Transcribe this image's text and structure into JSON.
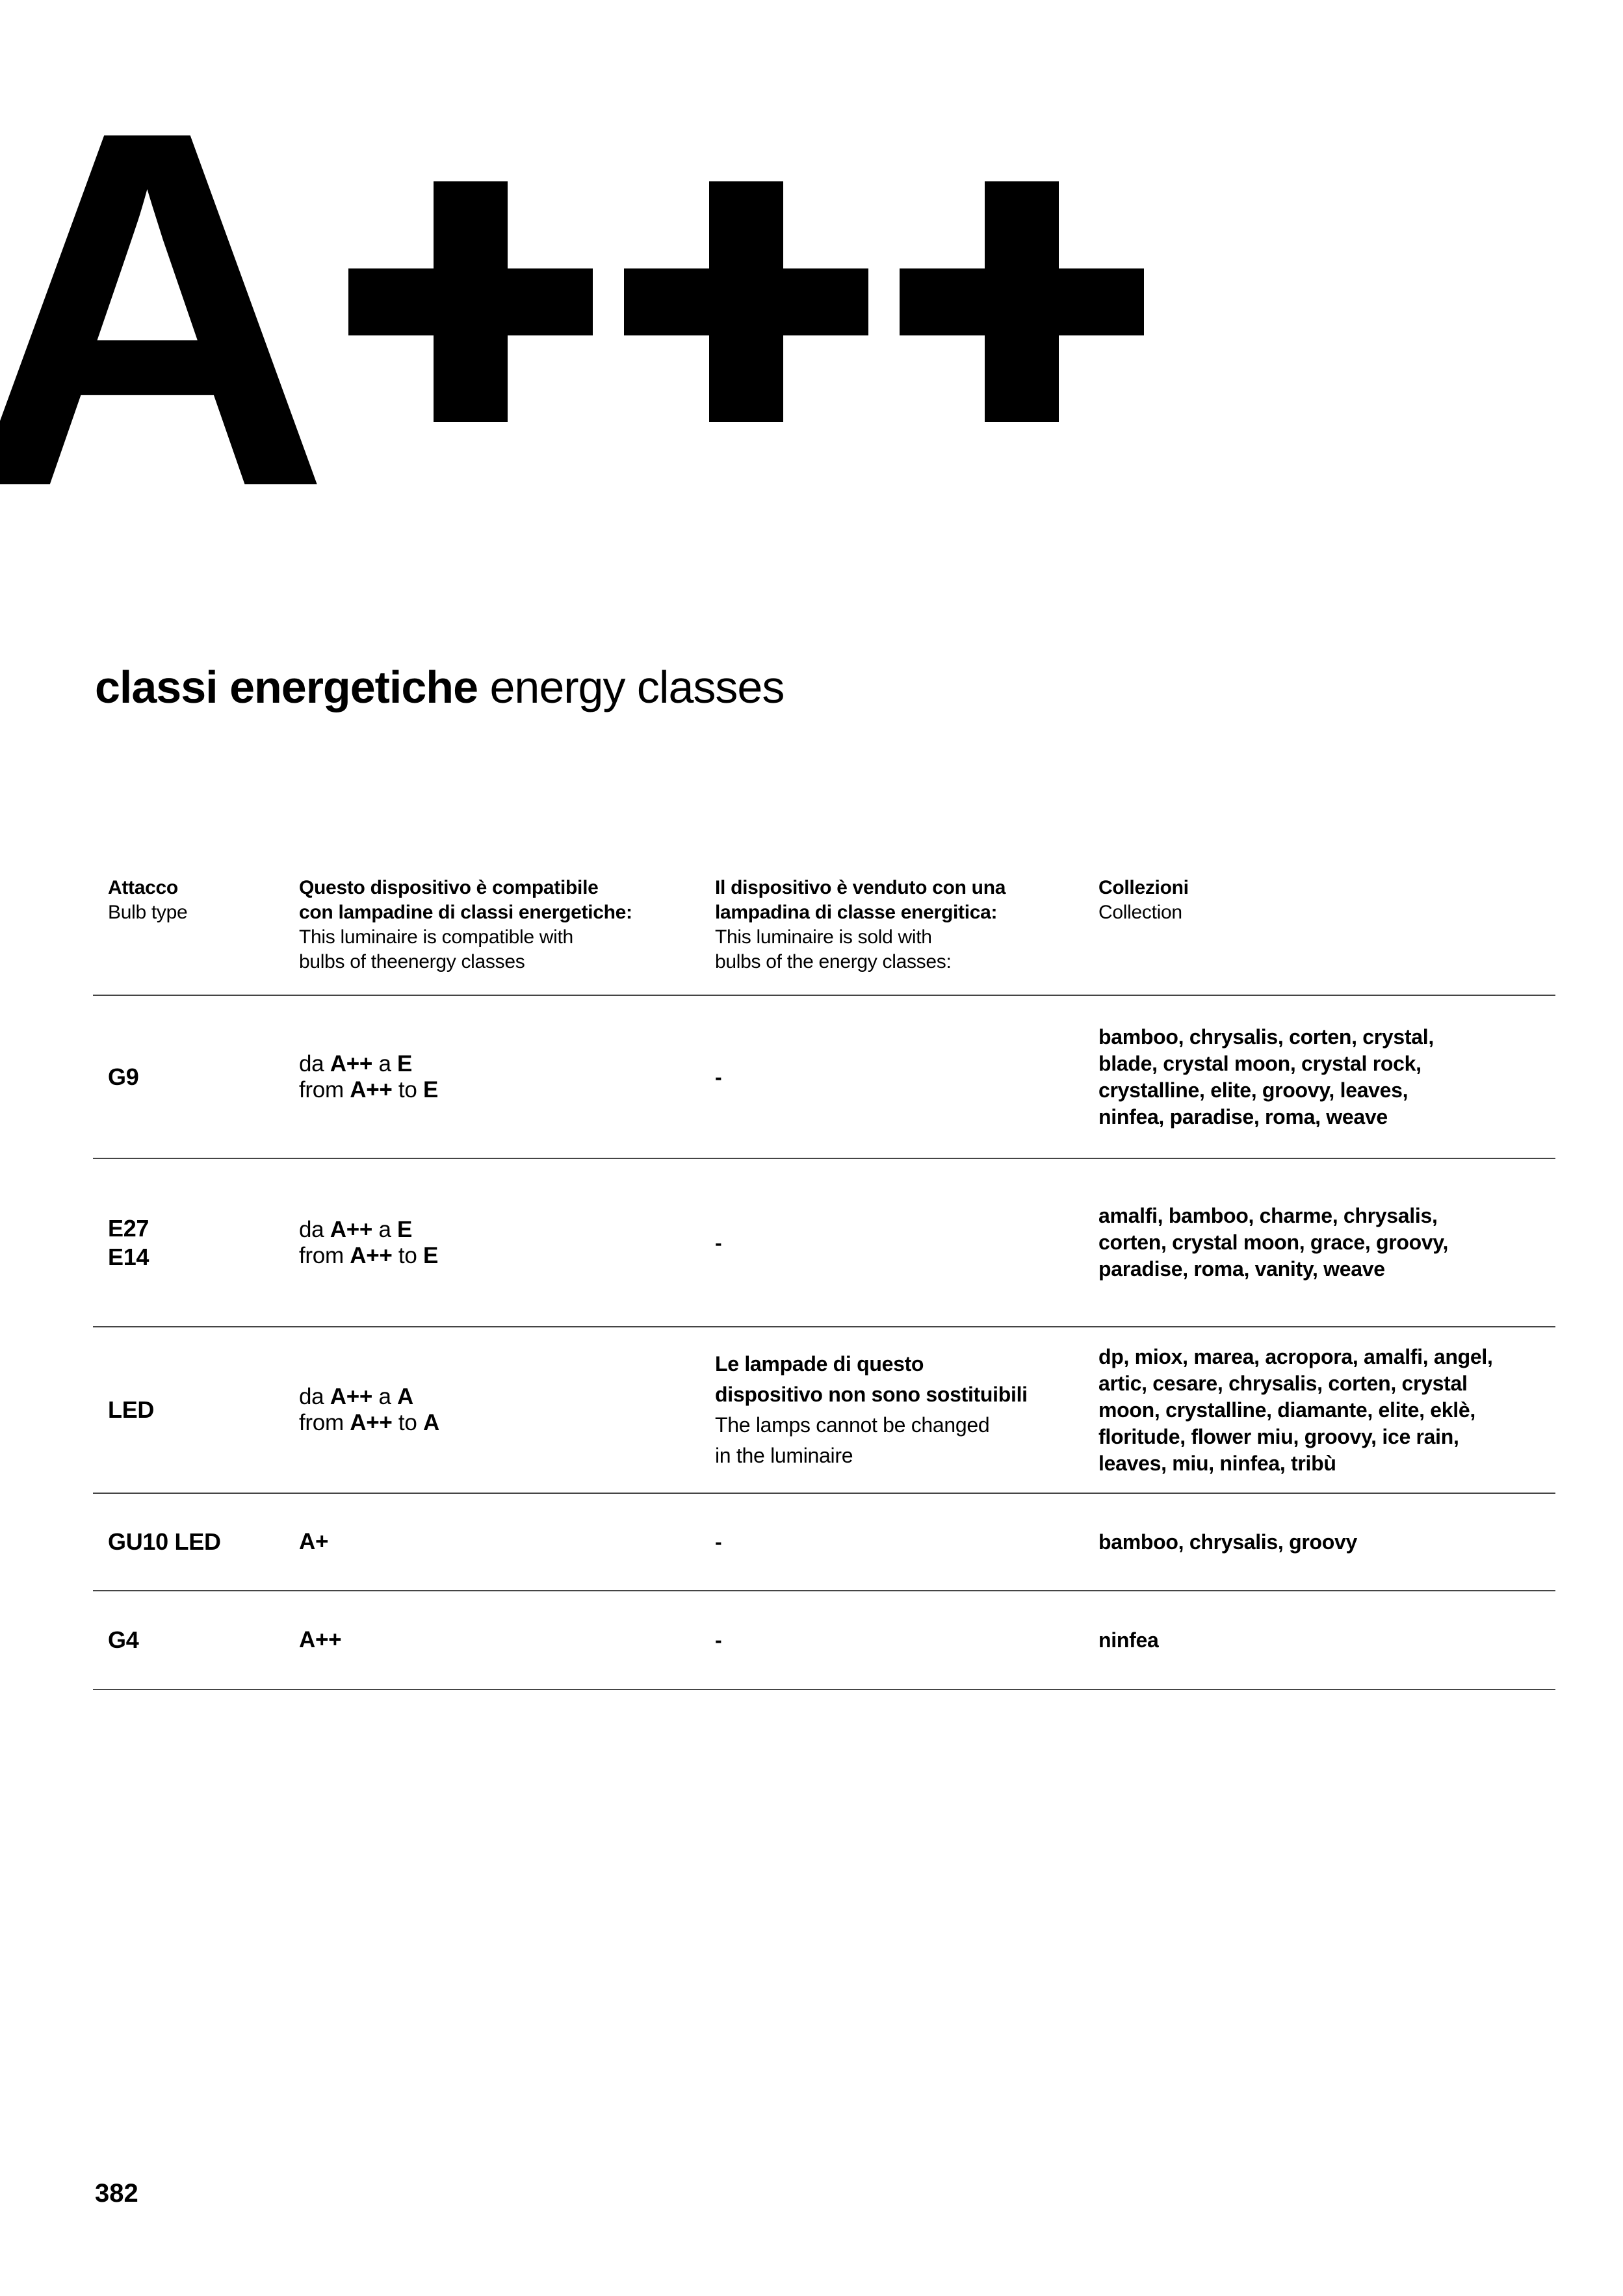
{
  "badge": {
    "text": "A+++",
    "letter": "A"
  },
  "title": {
    "bold": "classi energetiche",
    "regular": "energy classes"
  },
  "table": {
    "headers": [
      {
        "bold_lines": [
          "Attacco"
        ],
        "regular_lines": [
          "Bulb type"
        ]
      },
      {
        "bold_lines": [
          "Questo dispositivo è compatibile",
          "con lampadine di classi energetiche:"
        ],
        "regular_lines": [
          "This luminaire is compatible with",
          "bulbs of theenergy classes"
        ]
      },
      {
        "bold_lines": [
          "Il dispositivo è venduto con una",
          "lampadina di classe energitica:"
        ],
        "regular_lines": [
          "This luminaire is sold with",
          "bulbs of the energy classes:"
        ]
      },
      {
        "bold_lines": [
          "Collezioni"
        ],
        "regular_lines": [
          "Collection"
        ]
      }
    ],
    "rows": [
      {
        "bulb_lines": [
          "G9"
        ],
        "compat_lines": [
          [
            [
              "da ",
              0
            ],
            [
              "A++",
              1
            ],
            [
              " a ",
              0
            ],
            [
              "E",
              1
            ]
          ],
          [
            [
              "from ",
              0
            ],
            [
              "A++",
              1
            ],
            [
              " to ",
              0
            ],
            [
              "E",
              1
            ]
          ]
        ],
        "sold_dash": "-",
        "collection_lines": [
          "bamboo, chrysalis, corten, crystal,",
          "blade, crystal moon, crystal rock,",
          "crystalline, elite, groovy, leaves,",
          "ninfea, paradise, roma, weave"
        ]
      },
      {
        "bulb_lines": [
          "E27",
          "E14"
        ],
        "compat_lines": [
          [
            [
              "da ",
              0
            ],
            [
              "A++",
              1
            ],
            [
              " a ",
              0
            ],
            [
              "E",
              1
            ]
          ],
          [
            [
              "from ",
              0
            ],
            [
              "A++",
              1
            ],
            [
              " to ",
              0
            ],
            [
              "E",
              1
            ]
          ]
        ],
        "sold_dash": "-",
        "collection_lines": [
          "amalfi, bamboo, charme, chrysalis,",
          "corten, crystal moon, grace, groovy,",
          "paradise, roma, vanity, weave"
        ]
      },
      {
        "bulb_lines": [
          "LED"
        ],
        "compat_lines": [
          [
            [
              "da ",
              0
            ],
            [
              "A++",
              1
            ],
            [
              " a ",
              0
            ],
            [
              "A",
              1
            ]
          ],
          [
            [
              "from ",
              0
            ],
            [
              "A++",
              1
            ],
            [
              " to ",
              0
            ],
            [
              "A",
              1
            ]
          ]
        ],
        "sold_bold_lines": [
          "Le lampade di questo",
          "dispositivo non sono sostituibili"
        ],
        "sold_regular_lines": [
          "The lamps cannot be changed",
          "in the luminaire"
        ],
        "collection_lines": [
          "dp, miox, marea, acropora, amalfi, angel,",
          "artic, cesare, chrysalis, corten, crystal",
          "moon, crystalline, diamante, elite, eklè,",
          "floritude, flower miu, groovy, ice rain,",
          "leaves, miu, ninfea, tribù"
        ]
      },
      {
        "bulb_lines": [
          "GU10 LED"
        ],
        "compat_lines": [
          [
            [
              "A+",
              1
            ]
          ]
        ],
        "sold_dash": "-",
        "collection_lines": [
          "bamboo, chrysalis, groovy"
        ]
      },
      {
        "bulb_lines": [
          "G4"
        ],
        "compat_lines": [
          [
            [
              "A++",
              1
            ]
          ]
        ],
        "sold_dash": "-",
        "collection_lines": [
          "ninfea"
        ]
      }
    ]
  },
  "footer": {
    "page_number": "382"
  },
  "colors": {
    "text": "#000000",
    "rule": "#454545",
    "background": "#ffffff"
  }
}
